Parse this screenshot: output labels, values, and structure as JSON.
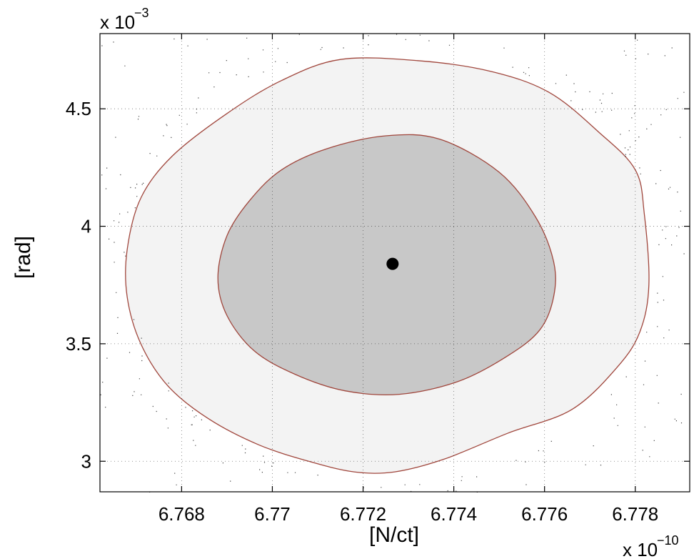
{
  "chart_data": {
    "type": "scatter",
    "xlabel": "[N/ct]",
    "ylabel": "[rad]",
    "x_multiplier": "x 10",
    "x_multiplier_exp": "−10",
    "y_multiplier": "x 10",
    "y_multiplier_exp": "−3",
    "xlim": [
      6.7662,
      6.7792
    ],
    "ylim": [
      2.87,
      4.82
    ],
    "x_ticks": [
      6.768,
      6.77,
      6.772,
      6.774,
      6.776,
      6.778
    ],
    "x_tick_labels": [
      "6.768",
      "6.77",
      "6.772",
      "6.774",
      "6.776",
      "6.778"
    ],
    "y_ticks": [
      3.0,
      3.5,
      4.0,
      4.5
    ],
    "y_tick_labels": [
      "3",
      "3.5",
      "4",
      "4.5"
    ],
    "grid": true,
    "point_estimate": {
      "x": 6.77265,
      "y": 3.84
    },
    "regions": [
      {
        "level": "outer",
        "fill": "#f3f3f3",
        "stroke": "#a0463c",
        "x": [
          6.7715,
          6.7732,
          6.7748,
          6.7761,
          6.7772,
          6.778,
          6.7782,
          6.7783,
          6.7781,
          6.7776,
          6.7766,
          6.7752,
          6.7738,
          6.7727,
          6.7718,
          6.7708,
          6.7697,
          6.7686,
          6.7677,
          6.7671,
          6.7668,
          6.7668,
          6.7671,
          6.7678,
          6.769,
          6.7702
        ],
        "y": [
          4.71,
          4.705,
          4.66,
          4.57,
          4.4,
          4.24,
          4.05,
          3.75,
          3.55,
          3.4,
          3.22,
          3.12,
          3.01,
          2.955,
          2.955,
          3.0,
          3.07,
          3.18,
          3.32,
          3.5,
          3.7,
          3.9,
          4.12,
          4.3,
          4.48,
          4.62
        ]
      },
      {
        "level": "inner",
        "fill": "#c8c8c8",
        "stroke": "#a0463c",
        "x": [
          6.7725,
          6.7737,
          6.775,
          6.7758,
          6.7762,
          6.7762,
          6.7759,
          6.7752,
          6.7741,
          6.7728,
          6.7716,
          6.7705,
          6.7696,
          6.769,
          6.7688,
          6.769,
          6.7695,
          6.7702,
          6.7712
        ],
        "y": [
          4.385,
          4.37,
          4.23,
          4.04,
          3.85,
          3.7,
          3.56,
          3.45,
          3.34,
          3.285,
          3.3,
          3.37,
          3.47,
          3.62,
          3.78,
          3.96,
          4.11,
          4.24,
          4.33
        ]
      }
    ]
  }
}
